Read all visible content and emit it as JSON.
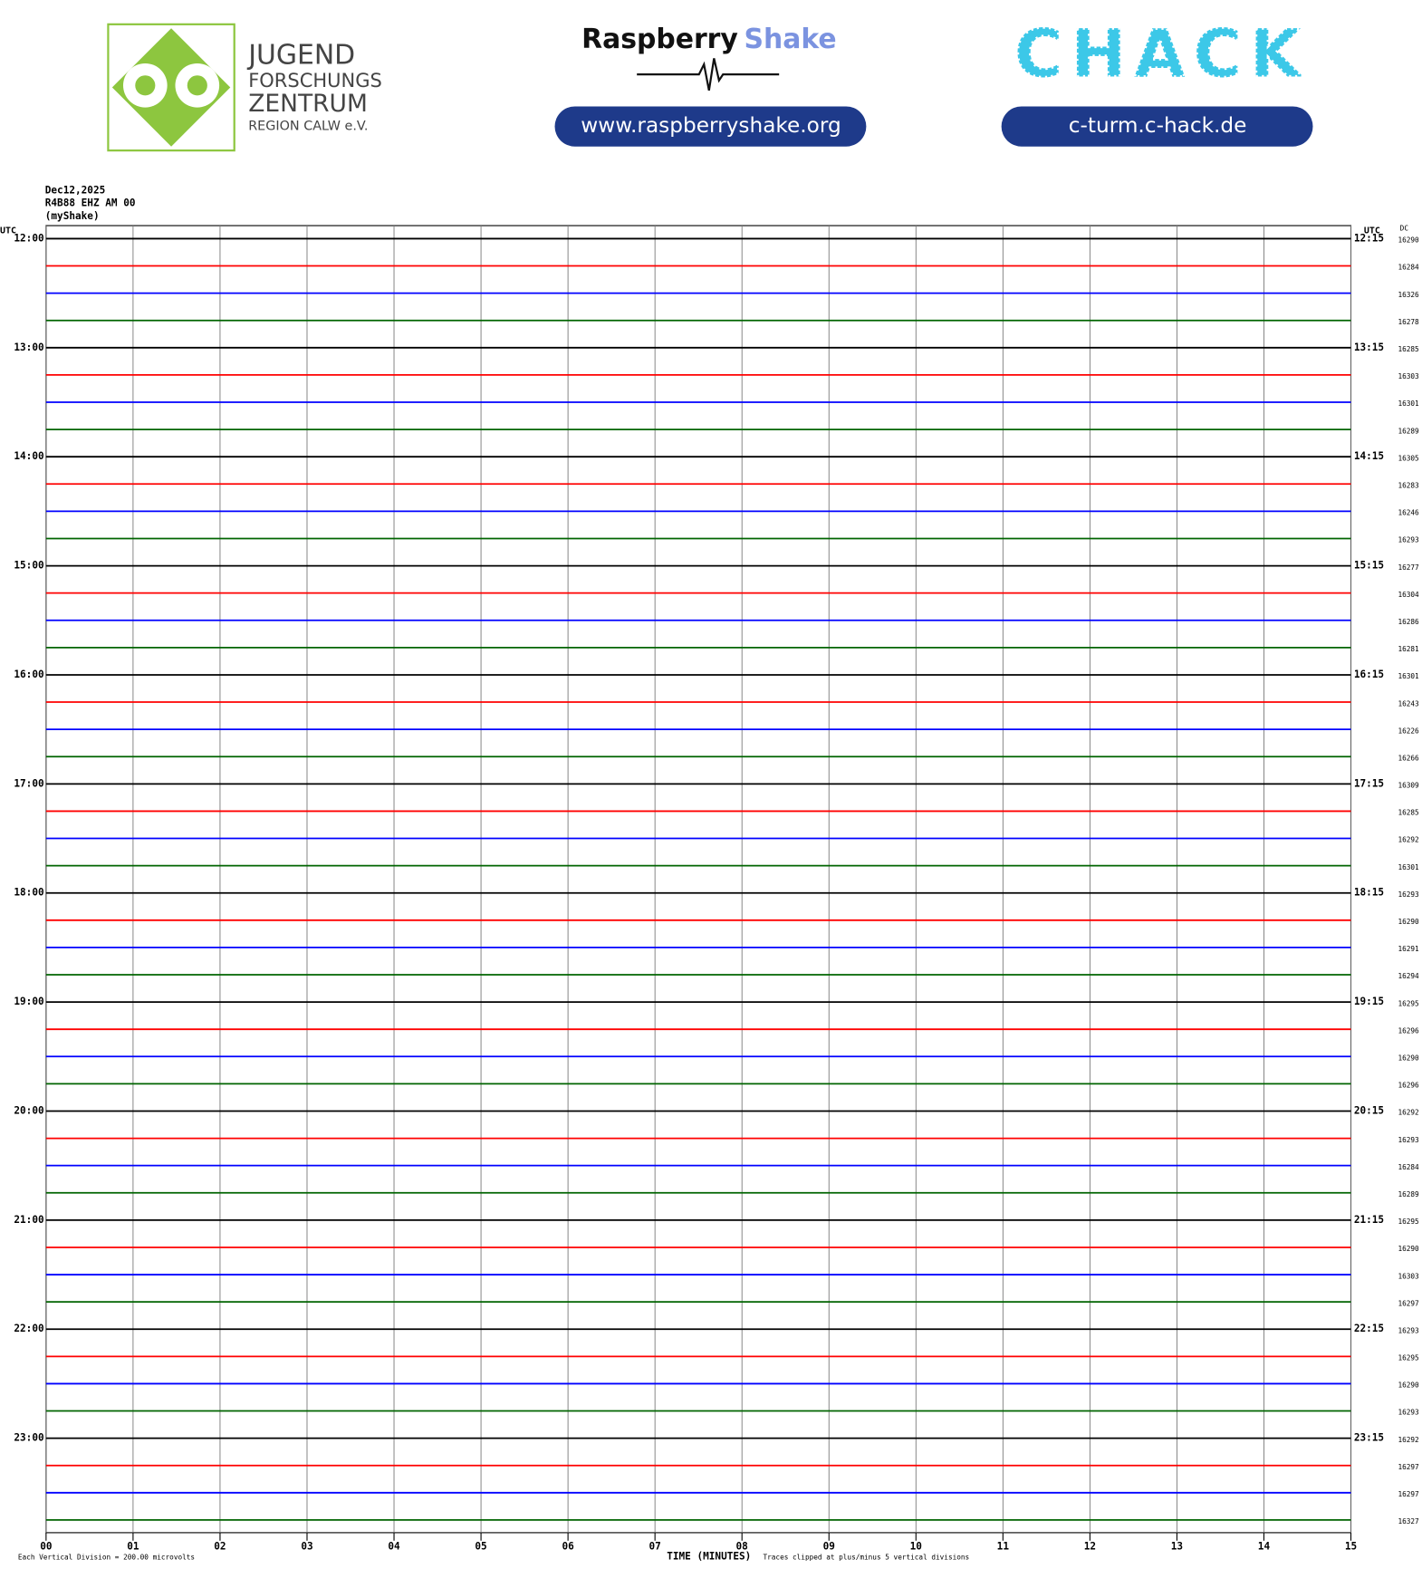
{
  "header": {
    "jfz": [
      "JUGEND",
      "FORSCHUNGS",
      "ZENTRUM",
      "REGION CALW e.V."
    ],
    "rs_1": "Raspberry",
    "rs_2": "Shake",
    "rs_url": "www.raspberryshake.org",
    "chack": "CHACK",
    "chack_url": "c-turm.c-hack.de"
  },
  "chart_data": {
    "type": "helicorder",
    "info": [
      "Dec12,2025",
      "R4B88 EHZ AM 00",
      "(myShake)"
    ],
    "left_unit": "UTC",
    "right_unit": "UTC",
    "dc_label": "DC",
    "x_label": "TIME (MINUTES)",
    "scale_note": "Each Vertical Division =  200.00 microvolts",
    "clip_note": "Traces clipped at plus/minus 5 vertical divisions",
    "colors": [
      "#000000",
      "#ff0000",
      "#0000ff",
      "#006400"
    ],
    "xlim": [
      0,
      15
    ],
    "xticks": [
      {
        "value": 0,
        "label": "00"
      },
      {
        "value": 1,
        "label": "01"
      },
      {
        "value": 2,
        "label": "02"
      },
      {
        "value": 3,
        "label": "03"
      },
      {
        "value": 4,
        "label": "04"
      },
      {
        "value": 5,
        "label": "05"
      },
      {
        "value": 6,
        "label": "06"
      },
      {
        "value": 7,
        "label": "07"
      },
      {
        "value": 8,
        "label": "08"
      },
      {
        "value": 9,
        "label": "09"
      },
      10,
      11,
      12,
      13,
      14,
      15
    ],
    "left_labels": [
      "12:00",
      null,
      null,
      null,
      "13:00",
      null,
      null,
      null,
      "14:00",
      null,
      null,
      null,
      "15:00",
      null,
      null,
      null,
      "16:00",
      null,
      null,
      null,
      "17:00",
      null,
      null,
      null,
      "18:00",
      null,
      null,
      null,
      "19:00",
      null,
      null,
      null,
      "20:00",
      null,
      null,
      null,
      "21:00",
      null,
      null,
      null,
      "22:00",
      null,
      null,
      null,
      "23:00",
      null,
      null,
      null
    ],
    "right_labels": [
      "12:15",
      null,
      null,
      null,
      "13:15",
      null,
      null,
      null,
      "14:15",
      null,
      null,
      null,
      "15:15",
      null,
      null,
      null,
      "16:15",
      null,
      null,
      null,
      "17:15",
      null,
      null,
      null,
      "18:15",
      null,
      null,
      null,
      "19:15",
      null,
      null,
      null,
      "20:15",
      null,
      null,
      null,
      "21:15",
      null,
      null,
      null,
      "22:15",
      null,
      null,
      null,
      "23:15",
      null,
      null,
      null
    ],
    "dc": [
      16290,
      16284,
      16326,
      16278,
      16285,
      16303,
      16301,
      16289,
      16305,
      16283,
      16246,
      16293,
      16277,
      16304,
      16286,
      16281,
      16301,
      16243,
      16226,
      16266,
      16309,
      16285,
      16292,
      16301,
      16293,
      16290,
      16291,
      16294,
      16295,
      16296,
      16290,
      16296,
      16292,
      16293,
      16284,
      16289,
      16295,
      16290,
      16303,
      16297,
      16293,
      16295,
      16290,
      16293,
      16292,
      16297,
      16297,
      16327
    ]
  }
}
